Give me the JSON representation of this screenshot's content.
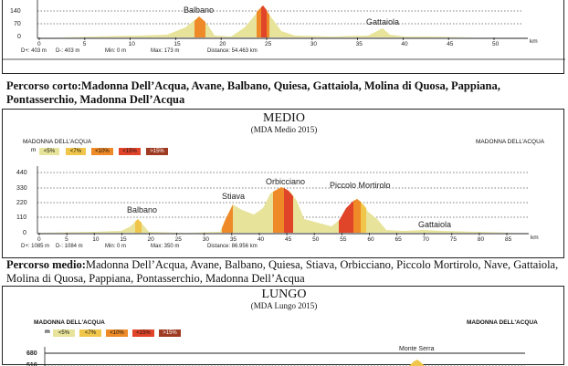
{
  "corto": {
    "y_ticks": [
      "140",
      "70",
      "0"
    ],
    "x_ticks": [
      "0",
      "5",
      "10",
      "15",
      "20",
      "25",
      "30",
      "35",
      "40",
      "45",
      "50"
    ],
    "x_unit": "km",
    "peaks": [
      "Balbano",
      "Gattaiola"
    ],
    "stats": {
      "d_plus": "D+: 403 m",
      "d_minus": "D-: 403 m",
      "min": "Min: 0 m",
      "max": "Max: 173 m",
      "distance": "Distance: 54.463 km"
    },
    "desc_label": "Percorso corto:",
    "desc_text": "Madonna Dell’Acqua, Avane, Balbano, Quiesa, Gattaiola, Molina di Quosa, Pappiana, Pontasserchio, Madonna Dell’Acqua"
  },
  "medio": {
    "title": "MEDIO",
    "subtitle": "(MDA Medio 2015)",
    "start_label": "MADONNA DELL’ACQUA",
    "end_label": "MADONNA DELL’ACQUA",
    "unit": "m",
    "legend": [
      "<5%",
      "<7%",
      "<10%",
      "<15%",
      ">15%"
    ],
    "y_ticks": [
      "440",
      "330",
      "220",
      "110",
      "0"
    ],
    "x_ticks": [
      "0",
      "5",
      "10",
      "15",
      "20",
      "25",
      "30",
      "35",
      "40",
      "45",
      "50",
      "55",
      "60",
      "65",
      "70",
      "75",
      "80",
      "85"
    ],
    "x_unit": "km",
    "peaks": [
      "Balbano",
      "Stiava",
      "Orbicciano",
      "Piccolo Mortirolo",
      "Gattaiola"
    ],
    "stats": {
      "d_plus": "D+: 1085 m",
      "d_minus": "D-: 1084 m",
      "min": "Min: 0 m",
      "max": "Max: 350 m",
      "distance": "Distance: 86.956 km"
    },
    "desc_label": "Percorso medio:",
    "desc_text": "Madonna Dell’Acqua, Avane, Balbano, Quiesa, Stiava, Orbicciano, Piccolo Mortirolo, Nave, Gattaiola, Molina di Quosa, Pappiana, Pontasserchio, Madonna Dell’Acqua"
  },
  "lungo": {
    "title": "LUNGO",
    "subtitle": "(MDA Lungo 2015)",
    "start_label": "MADONNA DELL'ACQUA",
    "end_label": "MADONNA DELL'ACQUA",
    "unit": "m",
    "legend": [
      "<5%",
      "<7%",
      "<10%",
      "<15%",
      ">15%"
    ],
    "y_ticks": [
      "680",
      "510"
    ],
    "peaks": [
      "Monte Serra"
    ]
  },
  "colors": {
    "p5": "#e8e39a",
    "p7": "#f0c64a",
    "p10": "#ee8a28",
    "p15": "#e0452a",
    "p15plus": "#9e3b22",
    "grid": "#444444"
  }
}
